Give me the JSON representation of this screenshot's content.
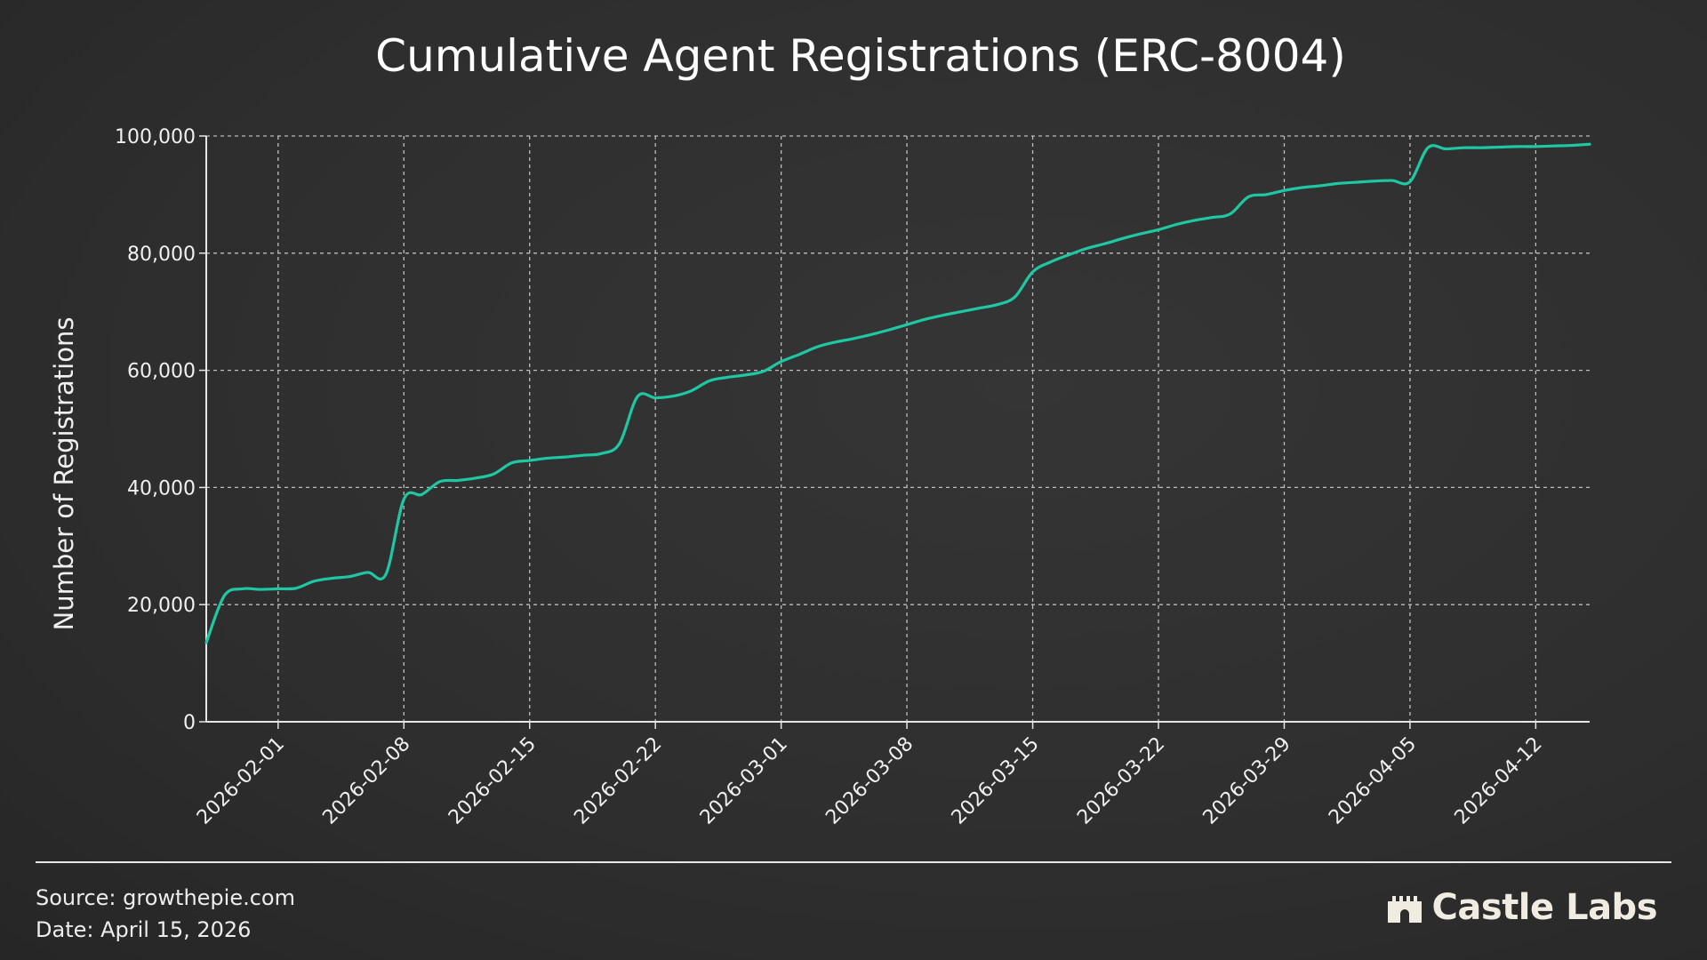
{
  "chart_data": {
    "type": "line",
    "title": "Cumulative Agent Registrations (ERC-8004)",
    "xlabel": "",
    "ylabel": "Number of Registrations",
    "ylim": [
      0,
      100000
    ],
    "yticks": [
      0,
      20000,
      40000,
      60000,
      80000,
      100000
    ],
    "ytick_labels": [
      "0",
      "20,000",
      "40,000",
      "60,000",
      "80,000",
      "100,000"
    ],
    "xlim": [
      "2026-01-28",
      "2026-04-15"
    ],
    "xticks": [
      "2026-02-01",
      "2026-02-08",
      "2026-02-15",
      "2026-02-22",
      "2026-03-01",
      "2026-03-08",
      "2026-03-15",
      "2026-03-22",
      "2026-03-29",
      "2026-04-05",
      "2026-04-12"
    ],
    "grid": true,
    "line_color": "#1fc7a2",
    "series": [
      {
        "x": [
          "2026-01-28",
          "2026-01-29",
          "2026-01-30",
          "2026-01-31",
          "2026-02-01",
          "2026-02-02",
          "2026-02-03",
          "2026-02-04",
          "2026-02-05",
          "2026-02-06",
          "2026-02-07",
          "2026-02-08",
          "2026-02-09",
          "2026-02-10",
          "2026-02-11",
          "2026-02-12",
          "2026-02-13",
          "2026-02-14",
          "2026-02-15",
          "2026-02-16",
          "2026-02-17",
          "2026-02-18",
          "2026-02-19",
          "2026-02-20",
          "2026-02-21",
          "2026-02-22",
          "2026-02-23",
          "2026-02-24",
          "2026-02-25",
          "2026-02-26",
          "2026-02-27",
          "2026-02-28",
          "2026-03-01",
          "2026-03-02",
          "2026-03-03",
          "2026-03-04",
          "2026-03-05",
          "2026-03-06",
          "2026-03-07",
          "2026-03-08",
          "2026-03-09",
          "2026-03-10",
          "2026-03-11",
          "2026-03-12",
          "2026-03-13",
          "2026-03-14",
          "2026-03-15",
          "2026-03-16",
          "2026-03-17",
          "2026-03-18",
          "2026-03-19",
          "2026-03-20",
          "2026-03-21",
          "2026-03-22",
          "2026-03-23",
          "2026-03-24",
          "2026-03-25",
          "2026-03-26",
          "2026-03-27",
          "2026-03-28",
          "2026-03-29",
          "2026-03-30",
          "2026-03-31",
          "2026-04-01",
          "2026-04-02",
          "2026-04-03",
          "2026-04-04",
          "2026-04-05",
          "2026-04-06",
          "2026-04-07",
          "2026-04-08",
          "2026-04-09",
          "2026-04-10",
          "2026-04-11",
          "2026-04-12",
          "2026-04-13",
          "2026-04-14",
          "2026-04-15"
        ],
        "values": [
          13500,
          21500,
          22700,
          22600,
          22700,
          22800,
          24000,
          24500,
          24800,
          25500,
          25200,
          38000,
          38800,
          41000,
          41200,
          41600,
          42300,
          44200,
          44600,
          45000,
          45200,
          45500,
          45800,
          47500,
          55500,
          55300,
          55600,
          56500,
          58200,
          58800,
          59200,
          59800,
          61500,
          62700,
          64000,
          64800,
          65400,
          66100,
          66900,
          67800,
          68700,
          69400,
          70000,
          70600,
          71200,
          72500,
          76800,
          78500,
          79700,
          80800,
          81600,
          82500,
          83300,
          84000,
          84900,
          85600,
          86100,
          86700,
          89600,
          90000,
          90700,
          91200,
          91500,
          91900,
          92100,
          92300,
          92400,
          92200,
          98000,
          97800,
          98000,
          98000,
          98100,
          98200,
          98200,
          98300,
          98400,
          98600
        ]
      }
    ]
  },
  "footer": {
    "source": "Source: growthepie.com",
    "date": "Date: April 15, 2026",
    "brand": "Castle Labs",
    "brand_icon": "castle-icon"
  }
}
